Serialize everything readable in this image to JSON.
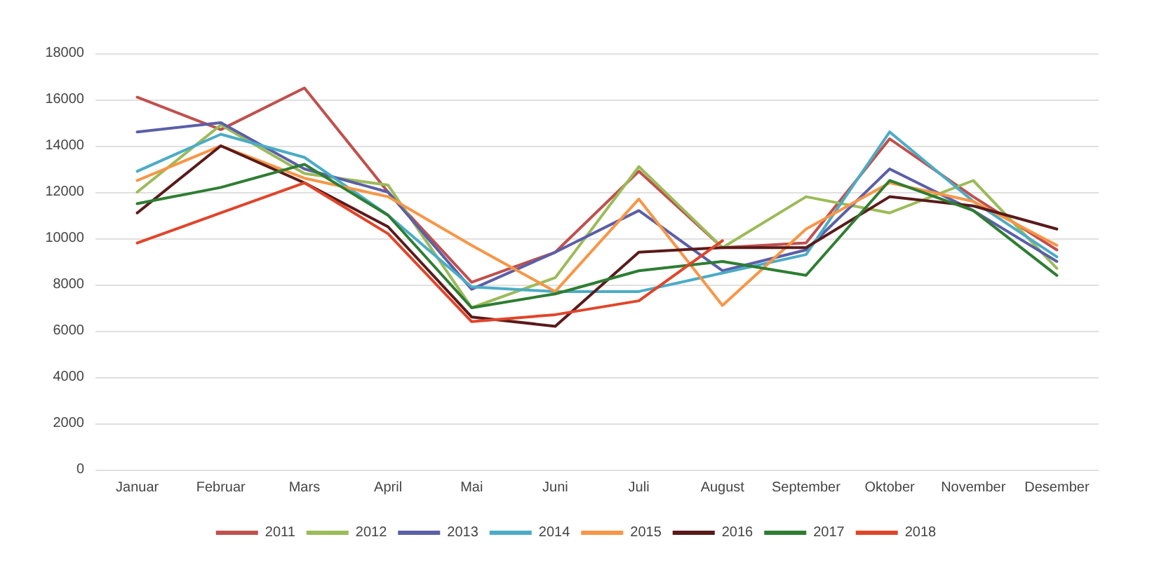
{
  "chart_data": {
    "type": "line",
    "categories": [
      "Januar",
      "Februar",
      "Mars",
      "April",
      "Mai",
      "Juni",
      "Juli",
      "August",
      "September",
      "Oktober",
      "November",
      "Desember"
    ],
    "series": [
      {
        "name": "2011",
        "color": "#c0504d",
        "values": [
          16100,
          14700,
          16500,
          12000,
          8100,
          9400,
          12900,
          9600,
          9800,
          14300,
          11800,
          9500
        ]
      },
      {
        "name": "2012",
        "color": "#9bbb59",
        "values": [
          12000,
          14900,
          12800,
          12300,
          7000,
          8300,
          13100,
          9600,
          11800,
          11100,
          12500,
          8700
        ]
      },
      {
        "name": "2013",
        "color": "#5b5fa8",
        "values": [
          14600,
          15000,
          13000,
          12000,
          7800,
          9400,
          11200,
          8600,
          9500,
          13000,
          11200,
          9000
        ]
      },
      {
        "name": "2014",
        "color": "#4bacc6",
        "values": [
          12900,
          14500,
          13500,
          11000,
          7900,
          7700,
          7700,
          8500,
          9300,
          14600,
          11600,
          9200
        ]
      },
      {
        "name": "2015",
        "color": "#f79646",
        "values": [
          12500,
          14000,
          12600,
          11800,
          9700,
          7700,
          11700,
          7100,
          10400,
          12400,
          11600,
          9700
        ]
      },
      {
        "name": "2016",
        "color": "#5a1a1a",
        "values": [
          11100,
          14000,
          12400,
          10500,
          6600,
          6200,
          9400,
          9600,
          9600,
          11800,
          11400,
          10400
        ]
      },
      {
        "name": "2017",
        "color": "#2e7d32",
        "values": [
          11500,
          12200,
          13200,
          11000,
          7000,
          7600,
          8600,
          9000,
          8400,
          12500,
          11200,
          8400
        ]
      },
      {
        "name": "2018",
        "color": "#e0452a",
        "values": [
          9800,
          11100,
          12400,
          10200,
          6400,
          6700,
          7300,
          9900,
          null,
          null,
          null,
          null
        ]
      }
    ],
    "ylim": [
      0,
      18000
    ],
    "yticks": [
      0,
      2000,
      4000,
      6000,
      8000,
      10000,
      12000,
      14000,
      16000,
      18000
    ],
    "grid": "y",
    "legend": "bottom",
    "marker": "none",
    "line_style": "solid"
  }
}
